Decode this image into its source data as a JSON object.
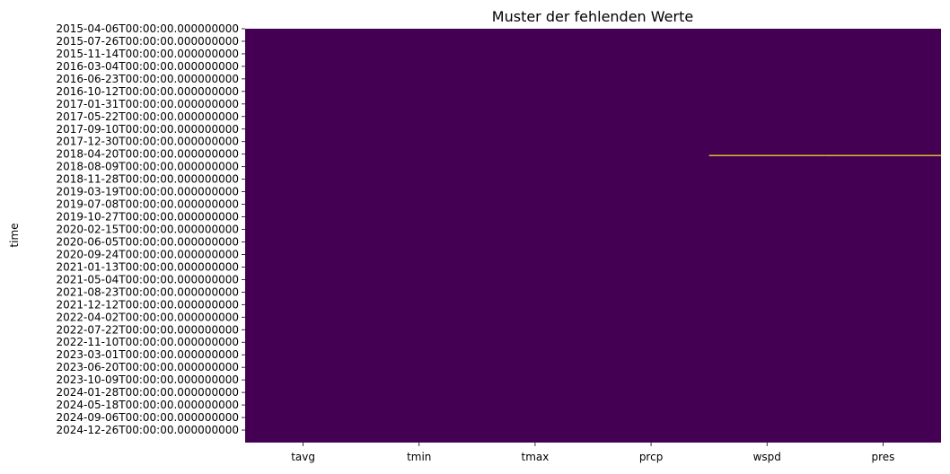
{
  "chart_data": {
    "type": "heatmap",
    "title": "Muster der fehlenden Werte",
    "xlabel": "",
    "ylabel": "time",
    "columns": [
      "tavg",
      "tmin",
      "tmax",
      "prcp",
      "wspd",
      "pres"
    ],
    "y_tick_labels": [
      "2015-04-06T00:00:00.000000000",
      "2015-07-26T00:00:00.000000000",
      "2015-11-14T00:00:00.000000000",
      "2016-03-04T00:00:00.000000000",
      "2016-06-23T00:00:00.000000000",
      "2016-10-12T00:00:00.000000000",
      "2017-01-31T00:00:00.000000000",
      "2017-05-22T00:00:00.000000000",
      "2017-09-10T00:00:00.000000000",
      "2017-12-30T00:00:00.000000000",
      "2018-04-20T00:00:00.000000000",
      "2018-08-09T00:00:00.000000000",
      "2018-11-28T00:00:00.000000000",
      "2019-03-19T00:00:00.000000000",
      "2019-07-08T00:00:00.000000000",
      "2019-10-27T00:00:00.000000000",
      "2020-02-15T00:00:00.000000000",
      "2020-06-05T00:00:00.000000000",
      "2020-09-24T00:00:00.000000000",
      "2021-01-13T00:00:00.000000000",
      "2021-05-04T00:00:00.000000000",
      "2021-08-23T00:00:00.000000000",
      "2021-12-12T00:00:00.000000000",
      "2022-04-02T00:00:00.000000000",
      "2022-07-22T00:00:00.000000000",
      "2022-11-10T00:00:00.000000000",
      "2023-03-01T00:00:00.000000000",
      "2023-06-20T00:00:00.000000000",
      "2023-10-09T00:00:00.000000000",
      "2024-01-28T00:00:00.000000000",
      "2024-05-18T00:00:00.000000000",
      "2024-09-06T00:00:00.000000000",
      "2024-12-26T00:00:00.000000000"
    ],
    "y_range": [
      "2015-04-06",
      "2025-04-16"
    ],
    "missing_cells": [
      {
        "date": "2018-05-02",
        "columns": [
          "wspd",
          "pres"
        ]
      }
    ],
    "present_color": "#440154",
    "missing_color": "#fde725",
    "colorbar": false,
    "grid": false,
    "legend": "none"
  }
}
